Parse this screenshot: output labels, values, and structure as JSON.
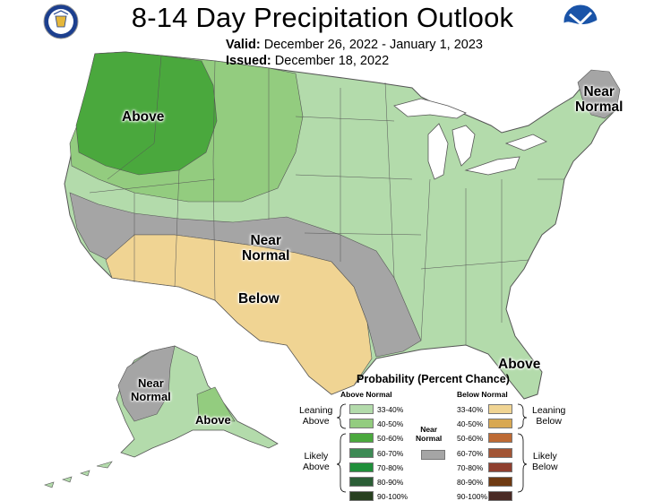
{
  "header": {
    "title": "8-14 Day Precipitation Outlook",
    "valid_label": "Valid:",
    "valid_range": "December 26, 2022 - January 1, 2023",
    "issued_label": "Issued:",
    "issued_date": "December 18, 2022",
    "logo_left": "commerce-seal-icon",
    "logo_right": "noaa-logo-icon"
  },
  "map_labels": {
    "above_nw": "Above",
    "near_normal_ne_1": "Near",
    "near_normal_ne_2": "Normal",
    "near_normal_center_1": "Near",
    "near_normal_center_2": "Normal",
    "below_sw": "Below",
    "above_fl": "Above",
    "near_normal_ak_1": "Near",
    "near_normal_ak_2": "Normal",
    "above_ak": "Above"
  },
  "legend": {
    "title": "Probability (Percent Chance)",
    "above_header": "Above Normal",
    "below_header": "Below Normal",
    "leaning_above": [
      "Leaning",
      "Above"
    ],
    "likely_above": [
      "Likely",
      "Above"
    ],
    "leaning_below": [
      "Leaning",
      "Below"
    ],
    "likely_below": [
      "Likely",
      "Below"
    ],
    "near_normal": [
      "Near",
      "Normal"
    ],
    "above_bins": [
      {
        "label": "33-40%",
        "color": "#b3dbab"
      },
      {
        "label": "40-50%",
        "color": "#93cc7f"
      },
      {
        "label": "50-60%",
        "color": "#4aa83d"
      },
      {
        "label": "60-70%",
        "color": "#3d8a55"
      },
      {
        "label": "70-80%",
        "color": "#1f8f3a"
      },
      {
        "label": "80-90%",
        "color": "#2b5e36"
      },
      {
        "label": "90-100%",
        "color": "#27401f"
      }
    ],
    "below_bins": [
      {
        "label": "33-40%",
        "color": "#f0d493"
      },
      {
        "label": "40-50%",
        "color": "#d8a852"
      },
      {
        "label": "50-60%",
        "color": "#bd6a34"
      },
      {
        "label": "60-70%",
        "color": "#a25535"
      },
      {
        "label": "70-80%",
        "color": "#8f3f2f"
      },
      {
        "label": "80-90%",
        "color": "#6e3a12"
      },
      {
        "label": "90-100%",
        "color": "#4a2a24"
      }
    ],
    "near_normal_color": "#a5a5a5"
  },
  "colors": {
    "above_33_40": "#b3dbab",
    "above_40_50": "#93cc7f",
    "above_50_60": "#4aa83d",
    "below_33_40": "#f0d493",
    "near_normal": "#a5a5a5",
    "lakes": "#ffffff",
    "border": "#555555"
  }
}
